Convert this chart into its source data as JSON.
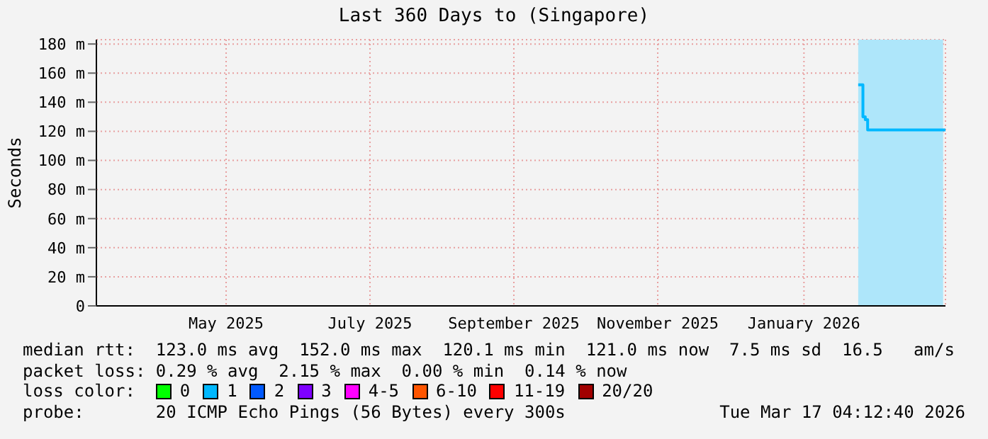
{
  "chart_data": {
    "type": "step",
    "title": "Last 360 Days to (Singapore)",
    "ylabel": "Seconds",
    "x": [
      "2026-02-08",
      "2026-02-09",
      "2026-02-10",
      "2026-02-11",
      "2026-02-12",
      "2026-02-20",
      "2026-02-28",
      "2026-03-08",
      "2026-03-17"
    ],
    "xlim": [
      "2025-03-22",
      "2026-03-17"
    ],
    "xticks": [
      {
        "value": "2025-05-16",
        "label": "May 2025"
      },
      {
        "value": "2025-07-16",
        "label": "July 2025"
      },
      {
        "value": "2025-09-15",
        "label": "September 2025"
      },
      {
        "value": "2025-11-15",
        "label": "November 2025"
      },
      {
        "value": "2026-01-16",
        "label": "January 2026"
      }
    ],
    "ylim": [
      0,
      183
    ],
    "yticks": [
      {
        "value": 0,
        "label": "0"
      },
      {
        "value": 20,
        "label": "20 m"
      },
      {
        "value": 40,
        "label": "40 m"
      },
      {
        "value": 60,
        "label": "60 m"
      },
      {
        "value": 80,
        "label": "80 m"
      },
      {
        "value": 100,
        "label": "100 m"
      },
      {
        "value": 120,
        "label": "120 m"
      },
      {
        "value": 140,
        "label": "140 m"
      },
      {
        "value": 160,
        "label": "160 m"
      },
      {
        "value": 180,
        "label": "180 m"
      }
    ],
    "series": [
      {
        "name": "0",
        "color": "#00ff00",
        "values": [
          null,
          null,
          null,
          null,
          null,
          null,
          null,
          null,
          null
        ]
      },
      {
        "name": "1",
        "color": "#00b8ff",
        "values": [
          152,
          152,
          130,
          128,
          121,
          121,
          121,
          121,
          121
        ]
      },
      {
        "name": "2",
        "color": "#0059ff",
        "values": [
          null,
          null,
          null,
          null,
          null,
          null,
          null,
          null,
          null
        ]
      },
      {
        "name": "3",
        "color": "#7e00ff",
        "values": [
          null,
          null,
          null,
          null,
          null,
          null,
          null,
          null,
          null
        ]
      },
      {
        "name": "4-5",
        "color": "#ff00ff",
        "values": [
          null,
          null,
          null,
          null,
          null,
          null,
          null,
          null,
          null
        ]
      },
      {
        "name": "6-10",
        "color": "#ff5500",
        "values": [
          null,
          null,
          null,
          null,
          null,
          null,
          null,
          null,
          null
        ]
      },
      {
        "name": "11-19",
        "color": "#ff0000",
        "values": [
          null,
          null,
          null,
          null,
          null,
          null,
          null,
          null,
          null
        ]
      },
      {
        "name": "20/20",
        "color": "#a10000",
        "values": [
          null,
          null,
          null,
          null,
          null,
          null,
          null,
          null,
          null
        ]
      }
    ],
    "bands": [
      {
        "axis": "x",
        "from": "2026-02-08",
        "to": "2026-03-16",
        "color": "#aee6fa"
      }
    ],
    "legend": "bottom",
    "legend_title": "loss color:",
    "grid": true,
    "annotations": [
      "median rtt:  123.0 ms avg  152.0 ms max  120.1 ms min  121.0 ms now  7.5 ms sd  16.5   am/s",
      "packet loss: 0.29 % avg  2.15 % max  0.00 % min  0.14 % now",
      "probe:       20 ICMP Echo Pings (56 Bytes) every 300s",
      "Tue Mar 17 04:12:40 2026"
    ]
  }
}
